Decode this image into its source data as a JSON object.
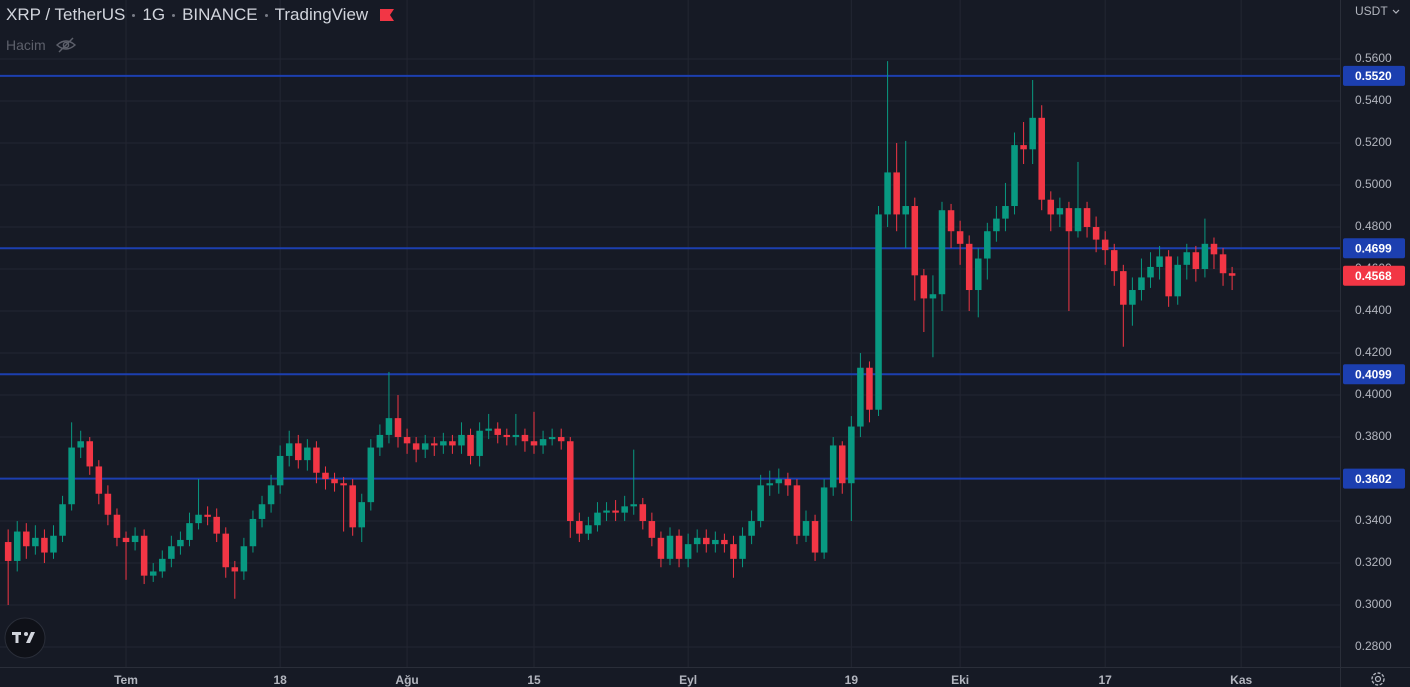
{
  "chart_data": {
    "type": "candlestick",
    "title_parts": [
      "XRP / TetherUS",
      "1G",
      "BINANCE",
      "TradingView"
    ],
    "volume_label": "Hacim",
    "currency": "USDT",
    "up_color": "#089981",
    "down_color": "#f23645",
    "line_color": "#1c3fb0",
    "grid": true,
    "xlim": [
      -0.9,
      146.9
    ],
    "xticks": [
      {
        "value": 13,
        "label": "Tem"
      },
      {
        "value": 30,
        "label": "18"
      },
      {
        "value": 44,
        "label": "Ağu"
      },
      {
        "value": 58,
        "label": "15"
      },
      {
        "value": 75,
        "label": "Eyl"
      },
      {
        "value": 93,
        "label": "19"
      },
      {
        "value": 105,
        "label": "Eki"
      },
      {
        "value": 121,
        "label": "17"
      },
      {
        "value": 136,
        "label": "Kas"
      }
    ],
    "ylim": [
      0.2705,
      0.5881
    ],
    "yticks": [
      {
        "value": 0.28,
        "label": "0.2800"
      },
      {
        "value": 0.3,
        "label": "0.3000"
      },
      {
        "value": 0.32,
        "label": "0.3200"
      },
      {
        "value": 0.34,
        "label": "0.3400"
      },
      {
        "value": 0.36,
        "label": "0.3600"
      },
      {
        "value": 0.38,
        "label": "0.3800"
      },
      {
        "value": 0.4,
        "label": "0.4000"
      },
      {
        "value": 0.42,
        "label": "0.4200"
      },
      {
        "value": 0.44,
        "label": "0.4400"
      },
      {
        "value": 0.46,
        "label": "0.4600"
      },
      {
        "value": 0.48,
        "label": "0.4800"
      },
      {
        "value": 0.5,
        "label": "0.5000"
      },
      {
        "value": 0.52,
        "label": "0.5200"
      },
      {
        "value": 0.54,
        "label": "0.5400"
      },
      {
        "value": 0.56,
        "label": "0.5600"
      }
    ],
    "hlines": [
      {
        "value": 0.552,
        "label": "0.5520"
      },
      {
        "value": 0.4699,
        "label": "0.4699"
      },
      {
        "value": 0.4099,
        "label": "0.4099"
      },
      {
        "value": 0.3602,
        "label": "0.3602"
      }
    ],
    "last_price": 0.4568,
    "open": [
      0.33,
      0.321,
      0.335,
      0.328,
      0.332,
      0.325,
      0.333,
      0.348,
      0.375,
      0.378,
      0.366,
      0.353,
      0.343,
      0.332,
      0.33,
      0.333,
      0.314,
      0.316,
      0.322,
      0.328,
      0.331,
      0.339,
      0.343,
      0.342,
      0.334,
      0.318,
      0.316,
      0.328,
      0.341,
      0.348,
      0.357,
      0.371,
      0.377,
      0.369,
      0.375,
      0.363,
      0.36,
      0.358,
      0.357,
      0.337,
      0.349,
      0.375,
      0.381,
      0.389,
      0.38,
      0.377,
      0.374,
      0.377,
      0.376,
      0.378,
      0.376,
      0.381,
      0.371,
      0.383,
      0.384,
      0.381,
      0.38,
      0.381,
      0.378,
      0.376,
      0.379,
      0.38,
      0.378,
      0.34,
      0.334,
      0.338,
      0.344,
      0.345,
      0.344,
      0.347,
      0.348,
      0.34,
      0.332,
      0.322,
      0.333,
      0.322,
      0.329,
      0.332,
      0.329,
      0.331,
      0.329,
      0.322,
      0.333,
      0.34,
      0.357,
      0.358,
      0.36,
      0.357,
      0.333,
      0.34,
      0.325,
      0.356,
      0.376,
      0.358,
      0.385,
      0.413,
      0.393,
      0.486,
      0.506,
      0.486,
      0.49,
      0.457,
      0.446,
      0.448,
      0.488,
      0.478,
      0.472,
      0.45,
      0.465,
      0.478,
      0.484,
      0.49,
      0.519,
      0.517,
      0.532,
      0.493,
      0.486,
      0.489,
      0.478,
      0.489,
      0.48,
      0.474,
      0.469,
      0.459,
      0.443,
      0.45,
      0.456,
      0.461,
      0.466,
      0.447,
      0.462,
      0.468,
      0.46,
      0.472,
      0.467,
      0.458
    ],
    "high": [
      0.336,
      0.34,
      0.339,
      0.338,
      0.336,
      0.338,
      0.352,
      0.387,
      0.383,
      0.38,
      0.369,
      0.357,
      0.346,
      0.335,
      0.337,
      0.336,
      0.32,
      0.326,
      0.333,
      0.335,
      0.344,
      0.36,
      0.347,
      0.346,
      0.337,
      0.321,
      0.332,
      0.345,
      0.352,
      0.362,
      0.376,
      0.383,
      0.381,
      0.379,
      0.378,
      0.366,
      0.363,
      0.361,
      0.36,
      0.353,
      0.379,
      0.386,
      0.411,
      0.4,
      0.384,
      0.38,
      0.381,
      0.38,
      0.382,
      0.381,
      0.387,
      0.384,
      0.387,
      0.391,
      0.387,
      0.384,
      0.391,
      0.384,
      0.392,
      0.383,
      0.384,
      0.384,
      0.38,
      0.344,
      0.342,
      0.349,
      0.349,
      0.35,
      0.352,
      0.374,
      0.351,
      0.344,
      0.335,
      0.337,
      0.336,
      0.334,
      0.336,
      0.336,
      0.335,
      0.334,
      0.333,
      0.337,
      0.345,
      0.362,
      0.364,
      0.365,
      0.363,
      0.36,
      0.345,
      0.343,
      0.36,
      0.38,
      0.378,
      0.39,
      0.42,
      0.416,
      0.49,
      0.559,
      0.52,
      0.521,
      0.494,
      0.46,
      0.457,
      0.492,
      0.491,
      0.483,
      0.476,
      0.47,
      0.482,
      0.49,
      0.501,
      0.525,
      0.53,
      0.55,
      0.538,
      0.497,
      0.494,
      0.492,
      0.511,
      0.492,
      0.485,
      0.478,
      0.472,
      0.462,
      0.456,
      0.465,
      0.468,
      0.471,
      0.469,
      0.466,
      0.472,
      0.471,
      0.484,
      0.475,
      0.47,
      0.461
    ],
    "low": [
      0.3,
      0.316,
      0.322,
      0.324,
      0.32,
      0.322,
      0.33,
      0.345,
      0.37,
      0.362,
      0.348,
      0.338,
      0.328,
      0.312,
      0.326,
      0.31,
      0.311,
      0.313,
      0.318,
      0.324,
      0.328,
      0.336,
      0.338,
      0.33,
      0.313,
      0.303,
      0.312,
      0.325,
      0.337,
      0.344,
      0.353,
      0.366,
      0.365,
      0.364,
      0.358,
      0.355,
      0.354,
      0.335,
      0.333,
      0.33,
      0.345,
      0.371,
      0.377,
      0.375,
      0.372,
      0.368,
      0.37,
      0.371,
      0.372,
      0.372,
      0.372,
      0.367,
      0.366,
      0.379,
      0.377,
      0.376,
      0.376,
      0.373,
      0.372,
      0.372,
      0.376,
      0.374,
      0.332,
      0.33,
      0.331,
      0.335,
      0.34,
      0.34,
      0.34,
      0.343,
      0.336,
      0.328,
      0.318,
      0.319,
      0.318,
      0.318,
      0.325,
      0.325,
      0.325,
      0.325,
      0.313,
      0.318,
      0.329,
      0.337,
      0.352,
      0.353,
      0.352,
      0.329,
      0.33,
      0.321,
      0.322,
      0.352,
      0.353,
      0.34,
      0.38,
      0.387,
      0.39,
      0.48,
      0.478,
      0.47,
      0.445,
      0.43,
      0.418,
      0.44,
      0.47,
      0.462,
      0.44,
      0.437,
      0.455,
      0.473,
      0.478,
      0.486,
      0.51,
      0.51,
      0.488,
      0.478,
      0.48,
      0.44,
      0.475,
      0.475,
      0.468,
      0.462,
      0.452,
      0.423,
      0.433,
      0.445,
      0.451,
      0.455,
      0.442,
      0.443,
      0.455,
      0.454,
      0.456,
      0.46,
      0.452,
      0.45
    ],
    "close": [
      0.321,
      0.335,
      0.328,
      0.332,
      0.325,
      0.333,
      0.348,
      0.375,
      0.378,
      0.366,
      0.353,
      0.343,
      0.332,
      0.33,
      0.333,
      0.314,
      0.316,
      0.322,
      0.328,
      0.331,
      0.339,
      0.343,
      0.342,
      0.334,
      0.318,
      0.316,
      0.328,
      0.341,
      0.348,
      0.357,
      0.371,
      0.377,
      0.369,
      0.375,
      0.363,
      0.36,
      0.358,
      0.357,
      0.337,
      0.349,
      0.375,
      0.381,
      0.389,
      0.38,
      0.377,
      0.374,
      0.377,
      0.376,
      0.378,
      0.376,
      0.381,
      0.371,
      0.383,
      0.384,
      0.381,
      0.38,
      0.381,
      0.378,
      0.376,
      0.379,
      0.38,
      0.378,
      0.34,
      0.334,
      0.338,
      0.344,
      0.345,
      0.344,
      0.347,
      0.348,
      0.34,
      0.332,
      0.322,
      0.333,
      0.322,
      0.329,
      0.332,
      0.329,
      0.331,
      0.329,
      0.322,
      0.333,
      0.34,
      0.357,
      0.358,
      0.36,
      0.357,
      0.333,
      0.34,
      0.325,
      0.356,
      0.376,
      0.358,
      0.385,
      0.413,
      0.393,
      0.486,
      0.506,
      0.486,
      0.49,
      0.457,
      0.446,
      0.448,
      0.488,
      0.478,
      0.472,
      0.45,
      0.465,
      0.478,
      0.484,
      0.49,
      0.519,
      0.517,
      0.532,
      0.493,
      0.486,
      0.489,
      0.478,
      0.489,
      0.48,
      0.474,
      0.469,
      0.459,
      0.443,
      0.45,
      0.456,
      0.461,
      0.466,
      0.447,
      0.462,
      0.468,
      0.46,
      0.472,
      0.467,
      0.458,
      0.4568
    ]
  }
}
